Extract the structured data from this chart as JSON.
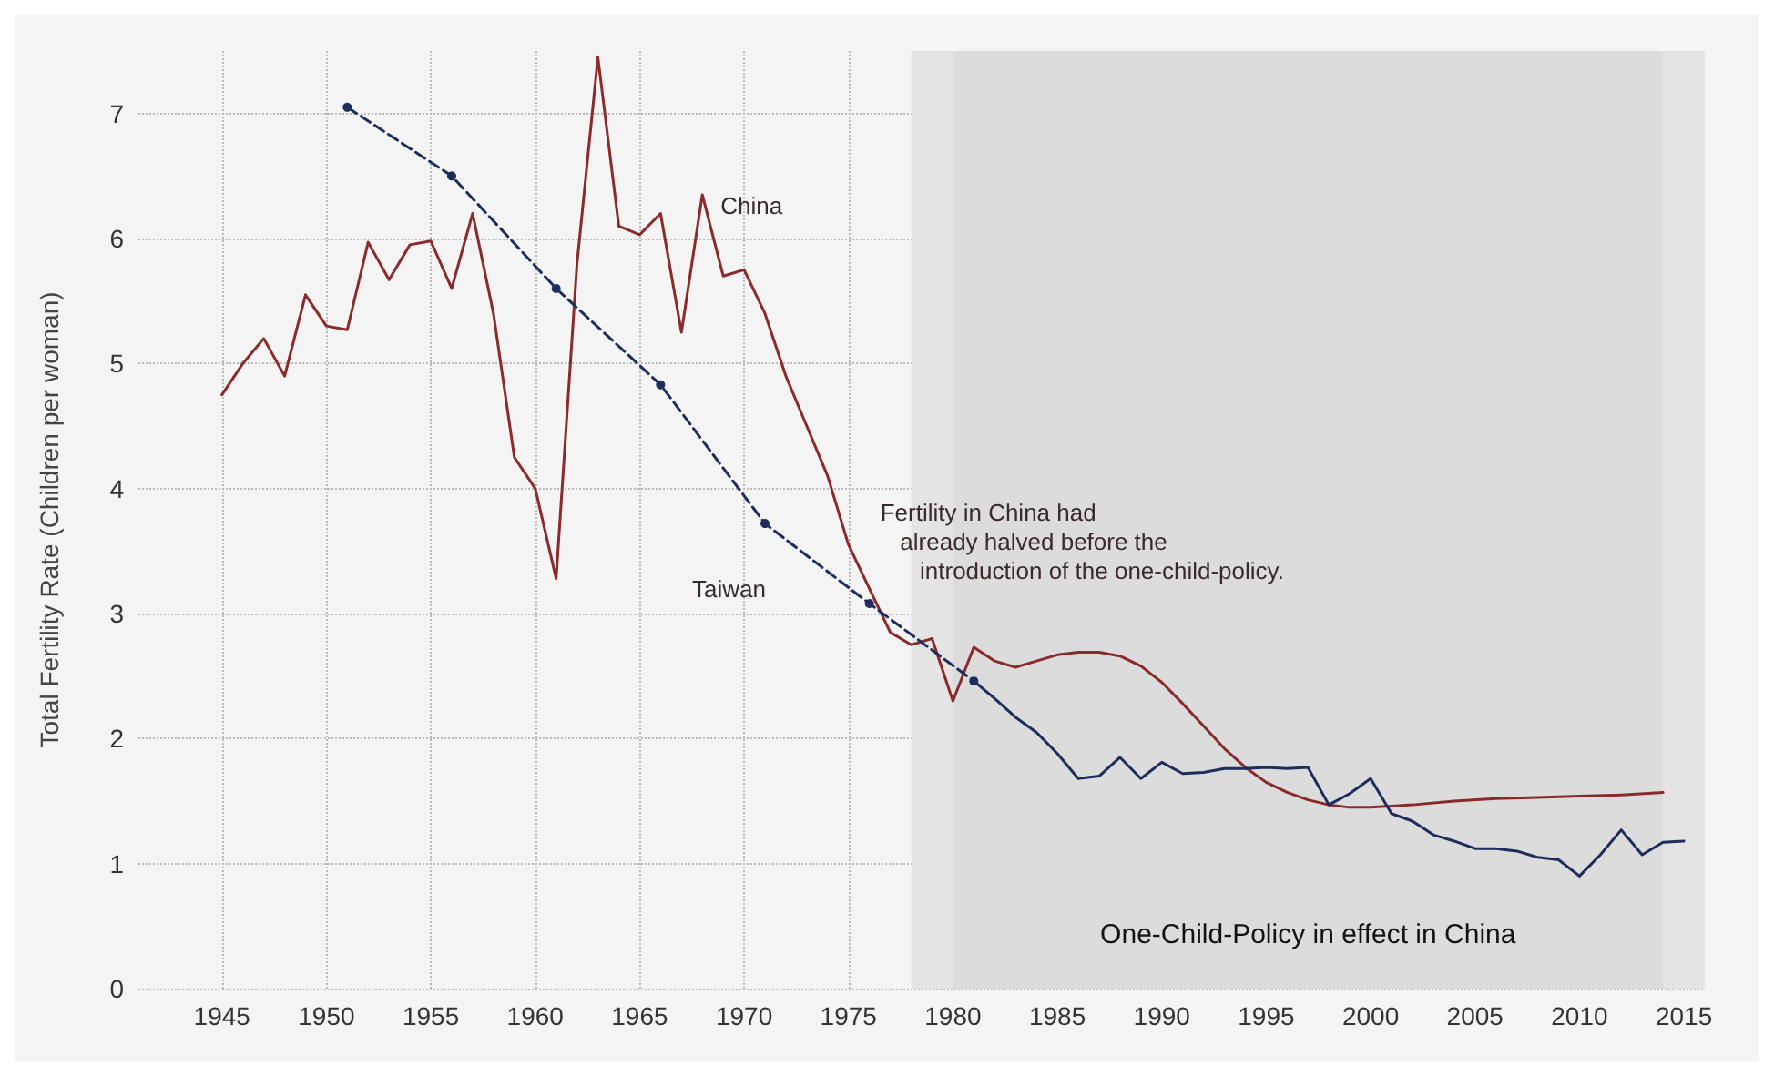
{
  "chart_data": {
    "type": "line",
    "ylabel": "Total Fertility Rate (Children per woman)",
    "xlim": [
      1941,
      2016
    ],
    "xticks": [
      1945,
      1950,
      1955,
      1960,
      1965,
      1970,
      1975,
      1980,
      1985,
      1990,
      1995,
      2000,
      2005,
      2010,
      2015
    ],
    "ylim": [
      0,
      7.5
    ],
    "yticks": [
      0,
      1,
      2,
      3,
      4,
      5,
      6,
      7
    ],
    "grid": true,
    "series": [
      {
        "color": "#8b2a2a",
        "marker": "none",
        "line_style": "solid",
        "x": [
          1945,
          1946,
          1947,
          1948,
          1949,
          1950,
          1951,
          1952,
          1953,
          1954,
          1955,
          1956,
          1957,
          1958,
          1959,
          1960,
          1961,
          1962,
          1963,
          1964,
          1965,
          1966,
          1967,
          1968,
          1969,
          1970,
          1971,
          1972,
          1973,
          1974,
          1975,
          1976,
          1977,
          1978,
          1979,
          1980,
          1981,
          1982,
          1983,
          1984,
          1985,
          1986,
          1987,
          1988,
          1989,
          1990,
          1991,
          1992,
          1993,
          1994,
          1995,
          1996,
          1997,
          1998,
          1999,
          2000,
          2002,
          2004,
          2006,
          2008,
          2010,
          2012,
          2014
        ],
        "values": [
          4.75,
          5.0,
          5.2,
          4.9,
          5.55,
          5.3,
          5.27,
          5.97,
          5.67,
          5.95,
          5.98,
          5.6,
          6.2,
          5.4,
          4.25,
          4.0,
          3.28,
          5.8,
          7.45,
          6.1,
          6.03,
          6.2,
          5.25,
          6.35,
          5.7,
          5.75,
          5.4,
          4.9,
          4.5,
          4.1,
          3.55,
          3.2,
          2.85,
          2.75,
          2.8,
          2.3,
          2.73,
          2.62,
          2.57,
          2.62,
          2.67,
          2.69,
          2.69,
          2.66,
          2.58,
          2.45,
          2.28,
          2.1,
          1.92,
          1.77,
          1.65,
          1.57,
          1.51,
          1.47,
          1.45,
          1.45,
          1.47,
          1.5,
          1.52,
          1.53,
          1.54,
          1.55,
          1.57
        ]
      },
      {
        "color": "#1f2d5c",
        "marker": "circle",
        "line_style": "dashed",
        "x": [
          1951,
          1956,
          1961,
          1966,
          1971,
          1976,
          1981
        ],
        "values": [
          7.05,
          6.5,
          5.6,
          4.83,
          3.72,
          3.08,
          2.46
        ]
      },
      {
        "color": "#1f2d5c",
        "marker": "none",
        "line_style": "solid",
        "x": [
          1981,
          1982,
          1983,
          1984,
          1985,
          1986,
          1987,
          1988,
          1989,
          1990,
          1991,
          1992,
          1993,
          1994,
          1995,
          1996,
          1997,
          1998,
          1999,
          2000,
          2001,
          2002,
          2003,
          2004,
          2005,
          2006,
          2007,
          2008,
          2009,
          2010,
          2011,
          2012,
          2013,
          2014,
          2015
        ],
        "values": [
          2.46,
          2.32,
          2.17,
          2.05,
          1.88,
          1.68,
          1.7,
          1.85,
          1.68,
          1.81,
          1.72,
          1.73,
          1.76,
          1.76,
          1.77,
          1.76,
          1.77,
          1.47,
          1.56,
          1.68,
          1.4,
          1.34,
          1.23,
          1.18,
          1.12,
          1.12,
          1.1,
          1.05,
          1.03,
          0.9,
          1.07,
          1.27,
          1.07,
          1.17,
          1.18
        ]
      }
    ],
    "bands": [
      {
        "axis": "x",
        "from": 1978,
        "to": 2016,
        "color": "#e4e4e4"
      },
      {
        "axis": "x",
        "from": 1980,
        "to": 2014,
        "color": "#dcdcdc",
        "label": "One-Child-Policy in effect in China"
      }
    ],
    "annotations": [
      {
        "text": "China",
        "x": 1968,
        "y": 6.35
      },
      {
        "text": "Taiwan",
        "x": 1971,
        "y": 3.72
      },
      {
        "text": "Fertility in China had\n   already halved before the\n      introduction of the one-child-policy.",
        "x": 1976,
        "y": 3.2
      }
    ]
  }
}
